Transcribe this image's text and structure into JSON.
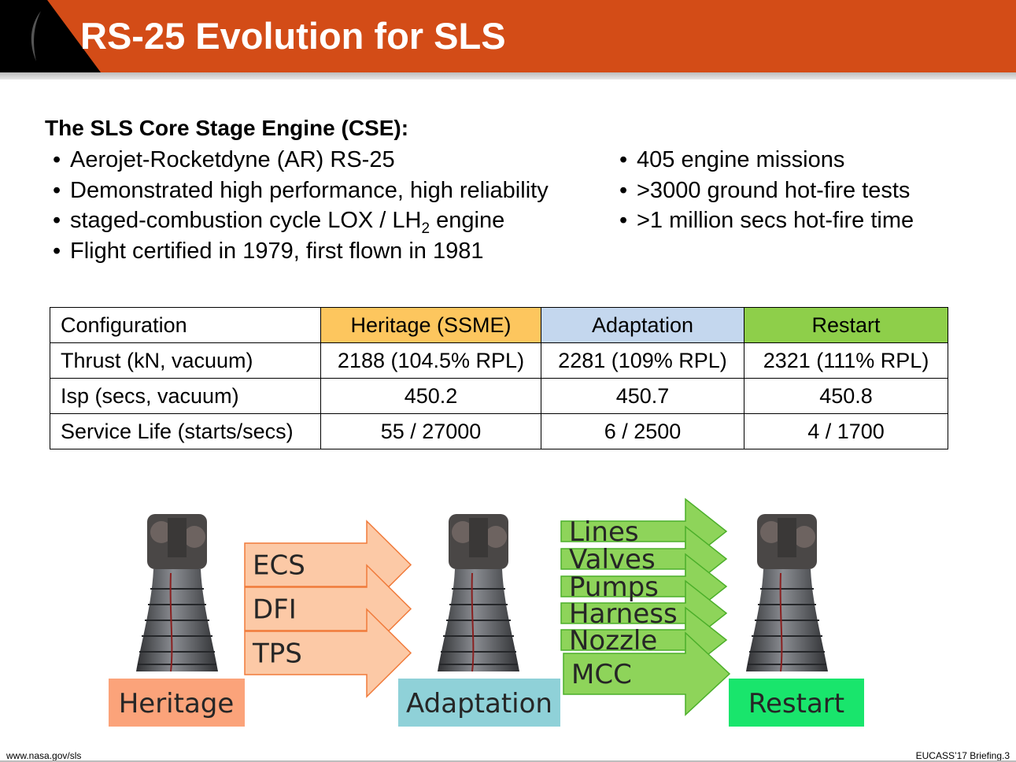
{
  "header": {
    "title": "RS-25 Evolution for SLS",
    "accent_color": "#d34c17"
  },
  "intro": {
    "heading": "The SLS Core Stage Engine (CSE):",
    "left_bullets": [
      "Aerojet-Rocketdyne (AR) RS-25",
      "Demonstrated high performance, high reliability",
      "Flight certified in 1979, first flown in 1981"
    ],
    "staged_line_prefix": "staged-combustion cycle LOX / LH",
    "staged_line_sub": "2",
    "staged_line_suffix": " engine",
    "right_bullets": [
      "405 engine missions",
      ">3000 ground hot-fire tests",
      ">1 million secs hot-fire time"
    ]
  },
  "table": {
    "headers": [
      "Configuration",
      "Heritage (SSME)",
      "Adaptation",
      "Restart"
    ],
    "header_colors": [
      "#ffffff",
      "#fdc65e",
      "#c4d7ee",
      "#8ecf4a"
    ],
    "rows": [
      [
        "Thrust (kN, vacuum)",
        "2188 (104.5% RPL)",
        "2281 (109% RPL)",
        "2321 (111% RPL)"
      ],
      [
        "Isp (secs, vacuum)",
        "450.2",
        "450.7",
        "450.8"
      ],
      [
        "Service Life (starts/secs)",
        "55 / 27000",
        "6 / 2500",
        "4 / 1700"
      ]
    ]
  },
  "diagram": {
    "stages": [
      {
        "label": "Heritage",
        "color": "#fba37a"
      },
      {
        "label": "Adaptation",
        "color": "#8fd1d8"
      },
      {
        "label": "Restart",
        "color": "#19e56c"
      }
    ],
    "adaptation_arrows": [
      "ECS",
      "DFI",
      "TPS"
    ],
    "adaptation_arrow_color": "#fcc9a6",
    "restart_arrows": [
      "Lines",
      "Valves",
      "Pumps",
      "Harness",
      "Nozzle",
      "MCC"
    ],
    "restart_arrow_color": "#8ed45a"
  },
  "footer": {
    "left": "www.nasa.gov/sls",
    "right": "EUCASS’17 Briefing.3"
  }
}
